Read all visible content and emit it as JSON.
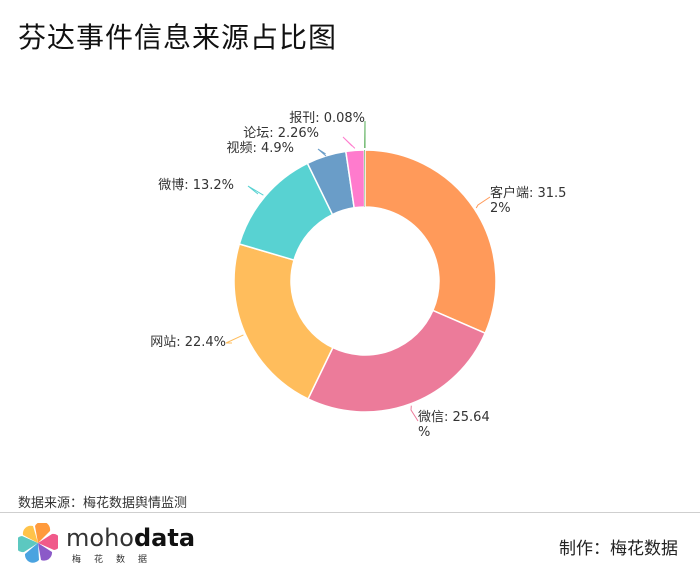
{
  "title": "芬达事件信息来源占比图",
  "footer": {
    "source": "数据来源：梅花数据舆情监测",
    "credit": "制作：梅花数据",
    "brand_prefix": "moho",
    "brand_suffix": "data",
    "brand_sub": "梅花数据"
  },
  "chart_data": {
    "type": "pie",
    "variant": "donut",
    "slices": [
      {
        "name": "客户端",
        "value": 31.52,
        "label": "客户端: 31.52%",
        "color": "#FF9A5A"
      },
      {
        "name": "微信",
        "value": 25.64,
        "label": "微信: 25.64%",
        "color": "#EC7B9A"
      },
      {
        "name": "网站",
        "value": 22.4,
        "label": "网站: 22.4%",
        "color": "#FFBD5C"
      },
      {
        "name": "微博",
        "value": 13.2,
        "label": "微博: 13.2%",
        "color": "#58D2D2"
      },
      {
        "name": "视频",
        "value": 4.9,
        "label": "视频: 4.9%",
        "color": "#6A9DC8"
      },
      {
        "name": "论坛",
        "value": 2.26,
        "label": "论坛: 2.26%",
        "color": "#FF7BCD"
      },
      {
        "name": "报刊",
        "value": 0.08,
        "label": "报刊: 0.08%",
        "color": "#5BAF5B"
      }
    ]
  }
}
